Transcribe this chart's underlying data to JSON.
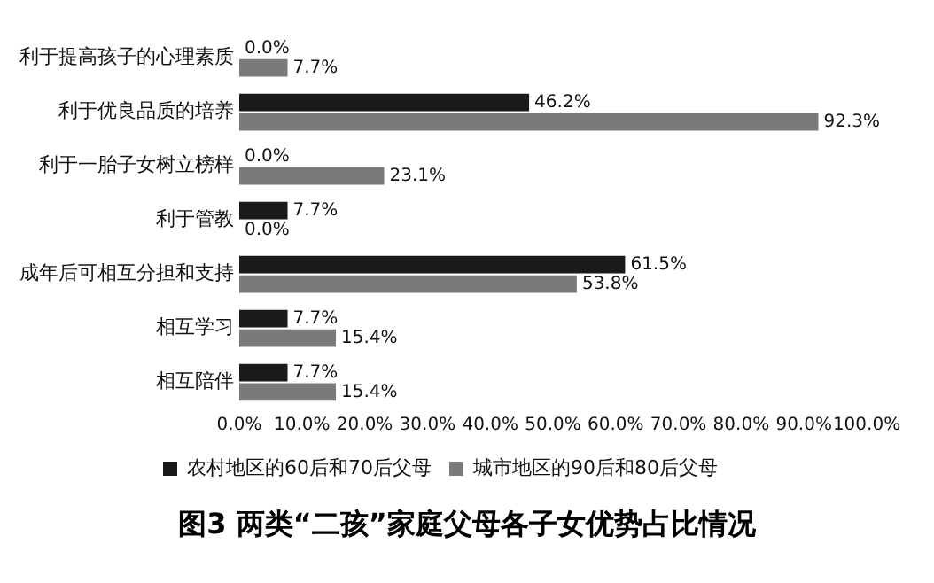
{
  "chart_data": {
    "type": "bar",
    "orientation": "horizontal",
    "title": "图3 两类“二孩”家庭父母各子女优势占比情况",
    "categories": [
      "利于提高孩子的心理素质",
      "利于优良品质的培养",
      "利于一胎子女树立榜样",
      "利于管教",
      "成年后可相互分担和支持",
      "相互学习",
      "相互陪伴"
    ],
    "series": [
      {
        "name": "农村地区的60后和70后父母",
        "color": "#1a1a1a",
        "values": [
          0.0,
          46.2,
          0.0,
          7.7,
          61.5,
          7.7,
          7.7
        ],
        "value_labels": [
          "0.0%",
          "46.2%",
          "0.0%",
          "7.7%",
          "61.5%",
          "7.7%",
          "7.7%"
        ]
      },
      {
        "name": "城市地区的90后和80后父母",
        "color": "#7a7a7a",
        "values": [
          7.7,
          92.3,
          23.1,
          0.0,
          53.8,
          15.4,
          15.4
        ],
        "value_labels": [
          "7.7%",
          "92.3%",
          "23.1%",
          "0.0%",
          "53.8%",
          "15.4%",
          "15.4%"
        ]
      }
    ],
    "xlim": [
      0,
      100
    ],
    "xticks": [
      {
        "value": 0,
        "label": "0.0%"
      },
      {
        "value": 10,
        "label": "10.0%"
      },
      {
        "value": 20,
        "label": "20.0%"
      },
      {
        "value": 30,
        "label": "30.0%"
      },
      {
        "value": 40,
        "label": "40.0%"
      },
      {
        "value": 50,
        "label": "50.0%"
      },
      {
        "value": 60,
        "label": "60.0%"
      },
      {
        "value": 70,
        "label": "70.0%"
      },
      {
        "value": 80,
        "label": "80.0%"
      },
      {
        "value": 90,
        "label": "90.0%"
      },
      {
        "value": 100,
        "label": "100.0%"
      }
    ],
    "grid": false,
    "legend": "bottom"
  }
}
